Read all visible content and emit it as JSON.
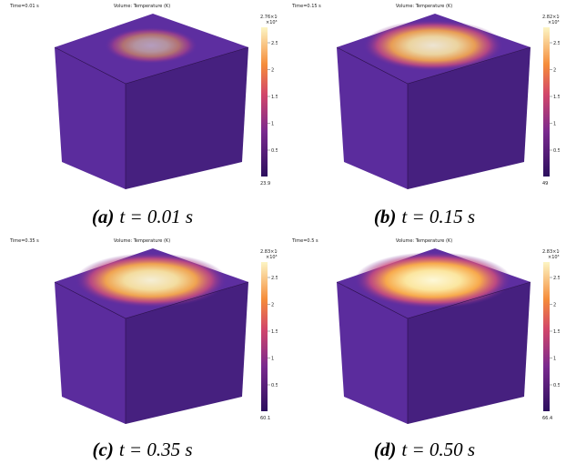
{
  "panels": [
    {
      "time": "Time=0.01 s",
      "title": "Volume: Temperature (K)",
      "max": "2.76×10³",
      "exponent": "×10³",
      "ticks": [
        "2.5",
        "2",
        "1.5",
        "1",
        "0.5"
      ],
      "min": "23.9",
      "caption_label": "(a)",
      "caption": "t = 0.01 s"
    },
    {
      "time": "Time=0.15 s",
      "title": "Volume: Temperature (K)",
      "max": "2.82×10³",
      "exponent": "×10³",
      "ticks": [
        "2.5",
        "2",
        "1.5",
        "1",
        "0.5"
      ],
      "min": "49",
      "caption_label": "(b)",
      "caption": "t = 0.15 s"
    },
    {
      "time": "Time=0.35 s",
      "title": "Volume: Temperature (K)",
      "max": "2.83×10³",
      "exponent": "×10³",
      "ticks": [
        "2.5",
        "2",
        "1.5",
        "1",
        "0.5"
      ],
      "min": "60.1",
      "caption_label": "(c)",
      "caption": "t = 0.35 s"
    },
    {
      "time": "Time=0.5 s",
      "title": "Volume: Temperature (K)",
      "max": "2.83×10³",
      "exponent": "×10³",
      "ticks": [
        "2.5",
        "2",
        "1.5",
        "1",
        "0.5"
      ],
      "min": "66.4",
      "caption_label": "(d)",
      "caption": "t = 0.50 s"
    }
  ]
}
